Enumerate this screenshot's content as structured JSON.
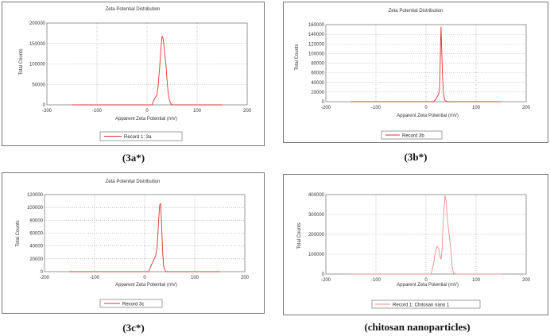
{
  "captions": [
    "(3a*)",
    "(3b*)",
    "(3c*)",
    "(chitosan nanoparticles)"
  ],
  "colors": {
    "series": "#e03030",
    "series_light": "#f08a8a",
    "grid": "#9a9a9a",
    "frame": "#777777"
  },
  "chart_data": [
    {
      "type": "line",
      "title": "Zeta Potential Distribution",
      "xlabel": "Apparent Zeta Potential (mV)",
      "ylabel": "Total Counts",
      "xlim": [
        -200,
        200
      ],
      "ylim": [
        0,
        200000
      ],
      "xticks": [
        -200,
        -100,
        0,
        100,
        200
      ],
      "yticks": [
        0,
        50000,
        100000,
        150000,
        200000
      ],
      "grid": true,
      "legend": "bottom",
      "series": [
        {
          "name": "Record 1: 3a",
          "x": [
            -150,
            0,
            10,
            15,
            20,
            22,
            25,
            28,
            30,
            32,
            35,
            38,
            40,
            42,
            45,
            48,
            50,
            60,
            150
          ],
          "y": [
            0,
            0,
            0,
            15000,
            25000,
            45000,
            90000,
            140000,
            168000,
            162000,
            130000,
            95000,
            60000,
            30000,
            10000,
            2000,
            0,
            0,
            0
          ]
        }
      ]
    },
    {
      "type": "line",
      "title": "Zeta Potential Distribution",
      "xlabel": "Apparent Zeta Potential (mV)",
      "ylabel": "Total Counts",
      "xlim": [
        -200,
        200
      ],
      "ylim": [
        0,
        160000
      ],
      "xticks": [
        -200,
        -100,
        0,
        100,
        200
      ],
      "yticks": [
        0,
        20000,
        40000,
        60000,
        80000,
        100000,
        120000,
        140000,
        160000
      ],
      "grid": true,
      "legend": "bottom",
      "series": [
        {
          "name": "Record 3b",
          "x": [
            -150,
            0,
            15,
            20,
            22,
            25,
            27,
            28,
            29,
            30,
            31,
            33,
            35,
            38,
            45,
            150
          ],
          "y": [
            0,
            0,
            0,
            5000,
            10000,
            15000,
            25000,
            60000,
            120000,
            155000,
            120000,
            50000,
            15000,
            2000,
            0,
            0
          ]
        }
      ]
    },
    {
      "type": "line",
      "title": "Zeta Potential Distribution",
      "xlabel": "Apparent Zeta Potential (mV)",
      "ylabel": "Total Counts",
      "xlim": [
        -200,
        200
      ],
      "ylim": [
        0,
        120000
      ],
      "xticks": [
        -200,
        -100,
        0,
        100,
        200
      ],
      "yticks": [
        0,
        20000,
        40000,
        60000,
        80000,
        100000,
        120000
      ],
      "grid": true,
      "legend": "bottom",
      "series": [
        {
          "name": "Record 3c",
          "x": [
            -150,
            0,
            8,
            12,
            18,
            22,
            25,
            28,
            30,
            32,
            34,
            36,
            38,
            42,
            150
          ],
          "y": [
            0,
            0,
            0,
            8000,
            18000,
            25000,
            40000,
            80000,
            104000,
            106000,
            70000,
            30000,
            8000,
            0,
            0
          ]
        }
      ]
    },
    {
      "type": "line",
      "title": "",
      "xlabel": "Apparent Zeta Potential (mV)",
      "ylabel": "Total Counts",
      "xlim": [
        -200,
        200
      ],
      "ylim": [
        0,
        400000
      ],
      "xticks": [
        -200,
        -100,
        0,
        100,
        200
      ],
      "yticks": [
        0,
        100000,
        200000,
        300000,
        400000
      ],
      "grid": true,
      "legend": "bottom",
      "series": [
        {
          "name": "Record 1: Chitosan nano 1",
          "x": [
            -150,
            0,
            10,
            15,
            18,
            22,
            25,
            28,
            30,
            32,
            34,
            36,
            38,
            40,
            42,
            45,
            48,
            50,
            52,
            55,
            60,
            150
          ],
          "y": [
            0,
            0,
            0,
            50000,
            100000,
            140000,
            130000,
            90000,
            75000,
            120000,
            240000,
            330000,
            395000,
            370000,
            300000,
            220000,
            160000,
            110000,
            40000,
            5000,
            0,
            0
          ]
        }
      ]
    }
  ]
}
